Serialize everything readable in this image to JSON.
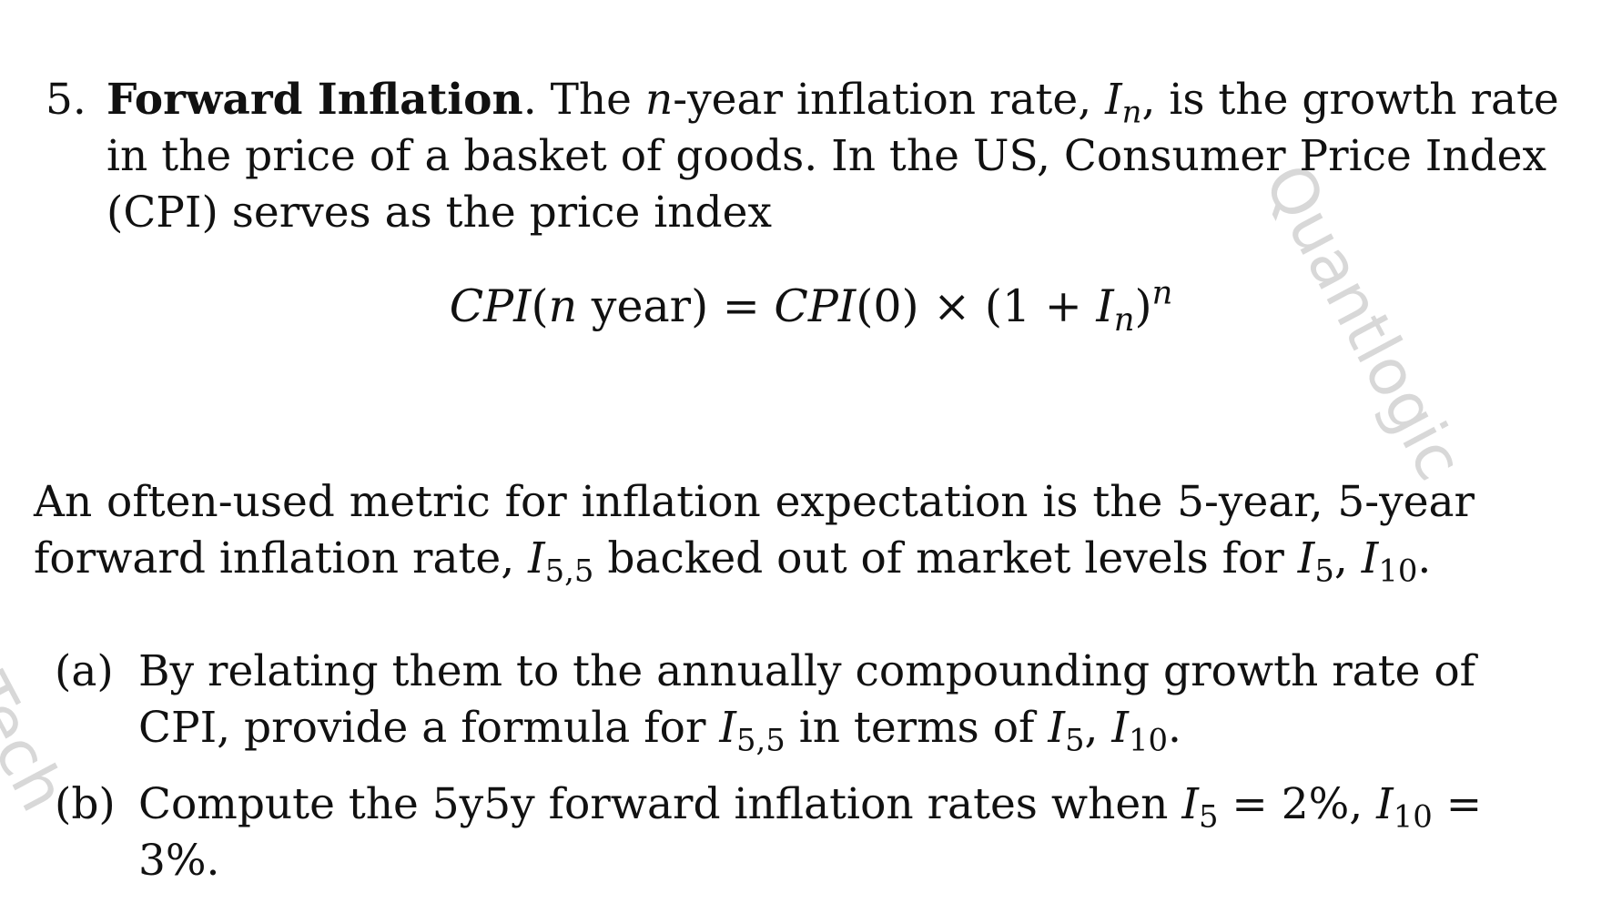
{
  "problem": {
    "number": "5.",
    "title": "Forward Inflation",
    "line1_after_title": ". The ",
    "var_n": "n",
    "line1_mid": "-year inflation rate, ",
    "var_I": "I",
    "sub_n": "n",
    "line1_end": ", is the growth rate",
    "line2": "in the price of a basket of goods. In the US, Consumer Price Index",
    "line3": "(CPI) serves as the price index"
  },
  "equation": {
    "lhs_fn": "CPI",
    "lhs_open": "(",
    "lhs_var": "n",
    "lhs_rest": " year) = ",
    "rhs_fn": "CPI",
    "rhs_rest": "(0) × (1 + ",
    "rhs_I": "I",
    "rhs_sub": "n",
    "rhs_close": ")",
    "rhs_exp": "n"
  },
  "paragraph": {
    "line1": "An often-used metric for inflation expectation is the 5-year, 5-year",
    "line2_start": "forward inflation rate, ",
    "I": "I",
    "sub_55": "5,5",
    "line2_mid": " backed out of market levels for ",
    "sub_5": "5",
    "comma": ", ",
    "sub_10": "10",
    "period": "."
  },
  "parts": [
    {
      "label": "(a)",
      "line1": "By relating them to the annually compounding growth rate of",
      "line2_start": "CPI, provide a formula for ",
      "sub_55": "5,5",
      "line2_mid": " in terms of ",
      "sub_5": "5",
      "sub_10": "10"
    },
    {
      "label": "(b)",
      "line1_start": "Compute the 5y5y forward inflation rates when ",
      "sub_5": "5",
      "eq1": " = 2%, ",
      "sub_10": "10",
      "eq2": " =",
      "line2": "3%."
    }
  ],
  "watermark": {
    "top_right": "Quantlogic",
    "bottom_left": "Tech"
  }
}
